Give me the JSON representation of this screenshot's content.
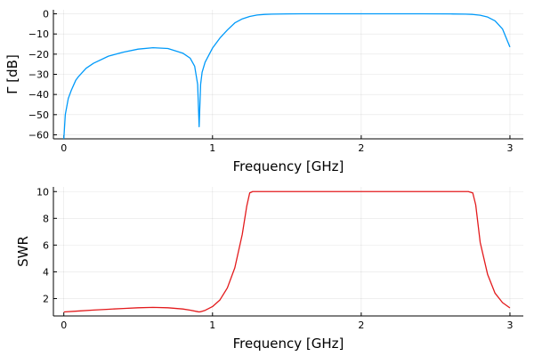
{
  "chart_data": [
    {
      "type": "line",
      "xlabel": "Frequency [GHz]",
      "ylabel": "Γ [dB]",
      "xlim": [
        -0.07,
        3.09
      ],
      "ylim": [
        -62,
        2
      ],
      "xticks": [
        0,
        1,
        2,
        3
      ],
      "xtick_labels": [
        "0",
        "1",
        "2",
        "3"
      ],
      "yticks": [
        0,
        -10,
        -20,
        -30,
        -40,
        -50,
        -60
      ],
      "ytick_labels": [
        "0",
        "−10",
        "−20",
        "−30",
        "−40",
        "−50",
        "−60"
      ],
      "grid": true,
      "legend": "none",
      "series": [
        {
          "color": "#009AFA",
          "x": [
            0,
            0.01,
            0.03,
            0.05,
            0.08,
            0.1,
            0.15,
            0.2,
            0.3,
            0.4,
            0.5,
            0.6,
            0.7,
            0.8,
            0.85,
            0.88,
            0.9,
            0.91,
            0.92,
            0.93,
            0.95,
            1.0,
            1.05,
            1.1,
            1.15,
            1.2,
            1.25,
            1.3,
            1.35,
            1.4,
            1.5,
            1.6,
            1.8,
            2.0,
            2.2,
            2.4,
            2.6,
            2.7,
            2.75,
            2.8,
            2.85,
            2.9,
            2.95,
            3.0
          ],
          "y": [
            -62,
            -50,
            -42,
            -38,
            -33,
            -31,
            -27,
            -24.5,
            -21,
            -19,
            -17.5,
            -16.8,
            -17.2,
            -19.5,
            -22,
            -26,
            -35,
            -56,
            -35,
            -29,
            -24,
            -17,
            -12,
            -8,
            -4.5,
            -2.5,
            -1.3,
            -0.6,
            -0.3,
            -0.15,
            -0.05,
            0,
            0,
            0,
            0,
            0,
            -0.05,
            -0.15,
            -0.3,
            -0.7,
            -1.6,
            -3.5,
            -7.5,
            -16.5
          ]
        }
      ]
    },
    {
      "type": "line",
      "xlabel": "Frequency [GHz]",
      "ylabel": "SWR",
      "xlim": [
        -0.07,
        3.09
      ],
      "ylim": [
        0.7,
        10.35
      ],
      "xticks": [
        0,
        1,
        2,
        3
      ],
      "xtick_labels": [
        "0",
        "1",
        "2",
        "3"
      ],
      "yticks": [
        2,
        4,
        6,
        8,
        10
      ],
      "ytick_labels": [
        "2",
        "4",
        "6",
        "8",
        "10"
      ],
      "grid": true,
      "legend": "none",
      "series": [
        {
          "color": "#E31A1C",
          "x": [
            0,
            0.1,
            0.2,
            0.3,
            0.4,
            0.5,
            0.6,
            0.7,
            0.8,
            0.85,
            0.9,
            0.91,
            0.92,
            0.95,
            1.0,
            1.05,
            1.1,
            1.15,
            1.2,
            1.23,
            1.25,
            1.27,
            1.3,
            1.5,
            2.0,
            2.5,
            2.72,
            2.75,
            2.77,
            2.8,
            2.85,
            2.9,
            2.95,
            3.0
          ],
          "y": [
            1.0,
            1.07,
            1.14,
            1.2,
            1.26,
            1.31,
            1.34,
            1.31,
            1.22,
            1.13,
            1.02,
            1.0,
            1.02,
            1.12,
            1.4,
            1.9,
            2.8,
            4.3,
            6.8,
            8.9,
            9.9,
            10.0,
            10.0,
            10.0,
            10.0,
            10.0,
            10.0,
            9.9,
            9.0,
            6.2,
            3.8,
            2.4,
            1.7,
            1.3
          ]
        }
      ]
    }
  ]
}
